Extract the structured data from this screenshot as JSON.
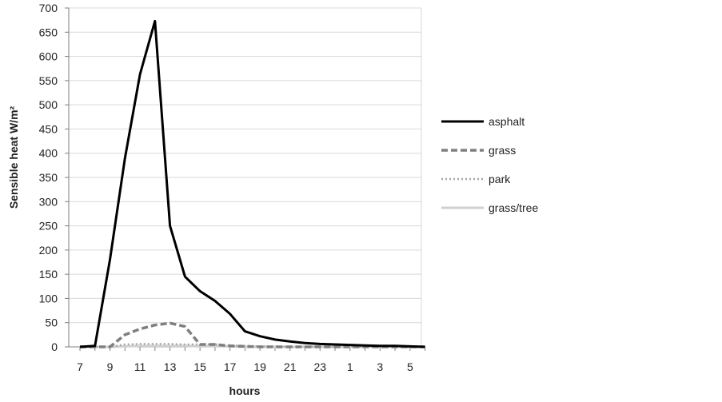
{
  "chart_data": {
    "type": "line",
    "title": "",
    "xlabel": "hours",
    "ylabel": "Sensible heat W/m²",
    "ylim": [
      0,
      700
    ],
    "yticks": [
      0,
      50,
      100,
      150,
      200,
      250,
      300,
      350,
      400,
      450,
      500,
      550,
      600,
      650,
      700
    ],
    "x": [
      7,
      8,
      9,
      10,
      11,
      12,
      13,
      14,
      15,
      16,
      17,
      18,
      19,
      20,
      21,
      22,
      23,
      24,
      1,
      2,
      3,
      4,
      5,
      6
    ],
    "xtick_labels": [
      "7",
      "9",
      "11",
      "13",
      "15",
      "17",
      "19",
      "21",
      "23",
      "1",
      "3",
      "5"
    ],
    "grid": true,
    "legend_position": "right",
    "series": [
      {
        "name": "asphalt",
        "color": "#000000",
        "style": "solid",
        "values": [
          0,
          2,
          180,
          390,
          563,
          673,
          250,
          145,
          115,
          95,
          68,
          32,
          22,
          15,
          11,
          8,
          6,
          5,
          4,
          3,
          2,
          2,
          1,
          0
        ]
      },
      {
        "name": "grass",
        "color": "#7f7f7f",
        "style": "dashed",
        "values": [
          0,
          0,
          0,
          25,
          37,
          45,
          49,
          42,
          5,
          5,
          2,
          1,
          0,
          0,
          0,
          0,
          0,
          0,
          0,
          0,
          0,
          0,
          0,
          0
        ]
      },
      {
        "name": "park",
        "color": "#a6a6a6",
        "style": "dotted",
        "values": [
          0,
          0,
          0,
          5,
          6,
          6,
          6,
          5,
          5,
          5,
          3,
          2,
          1,
          1,
          0,
          0,
          0,
          0,
          0,
          0,
          0,
          0,
          0,
          0
        ]
      },
      {
        "name": "grass/tree",
        "color": "#d0d0d0",
        "style": "solid",
        "values": [
          0,
          0,
          0,
          1,
          2,
          2,
          2,
          2,
          1,
          1,
          1,
          0,
          0,
          0,
          0,
          0,
          0,
          0,
          0,
          0,
          0,
          0,
          0,
          0
        ]
      }
    ]
  }
}
